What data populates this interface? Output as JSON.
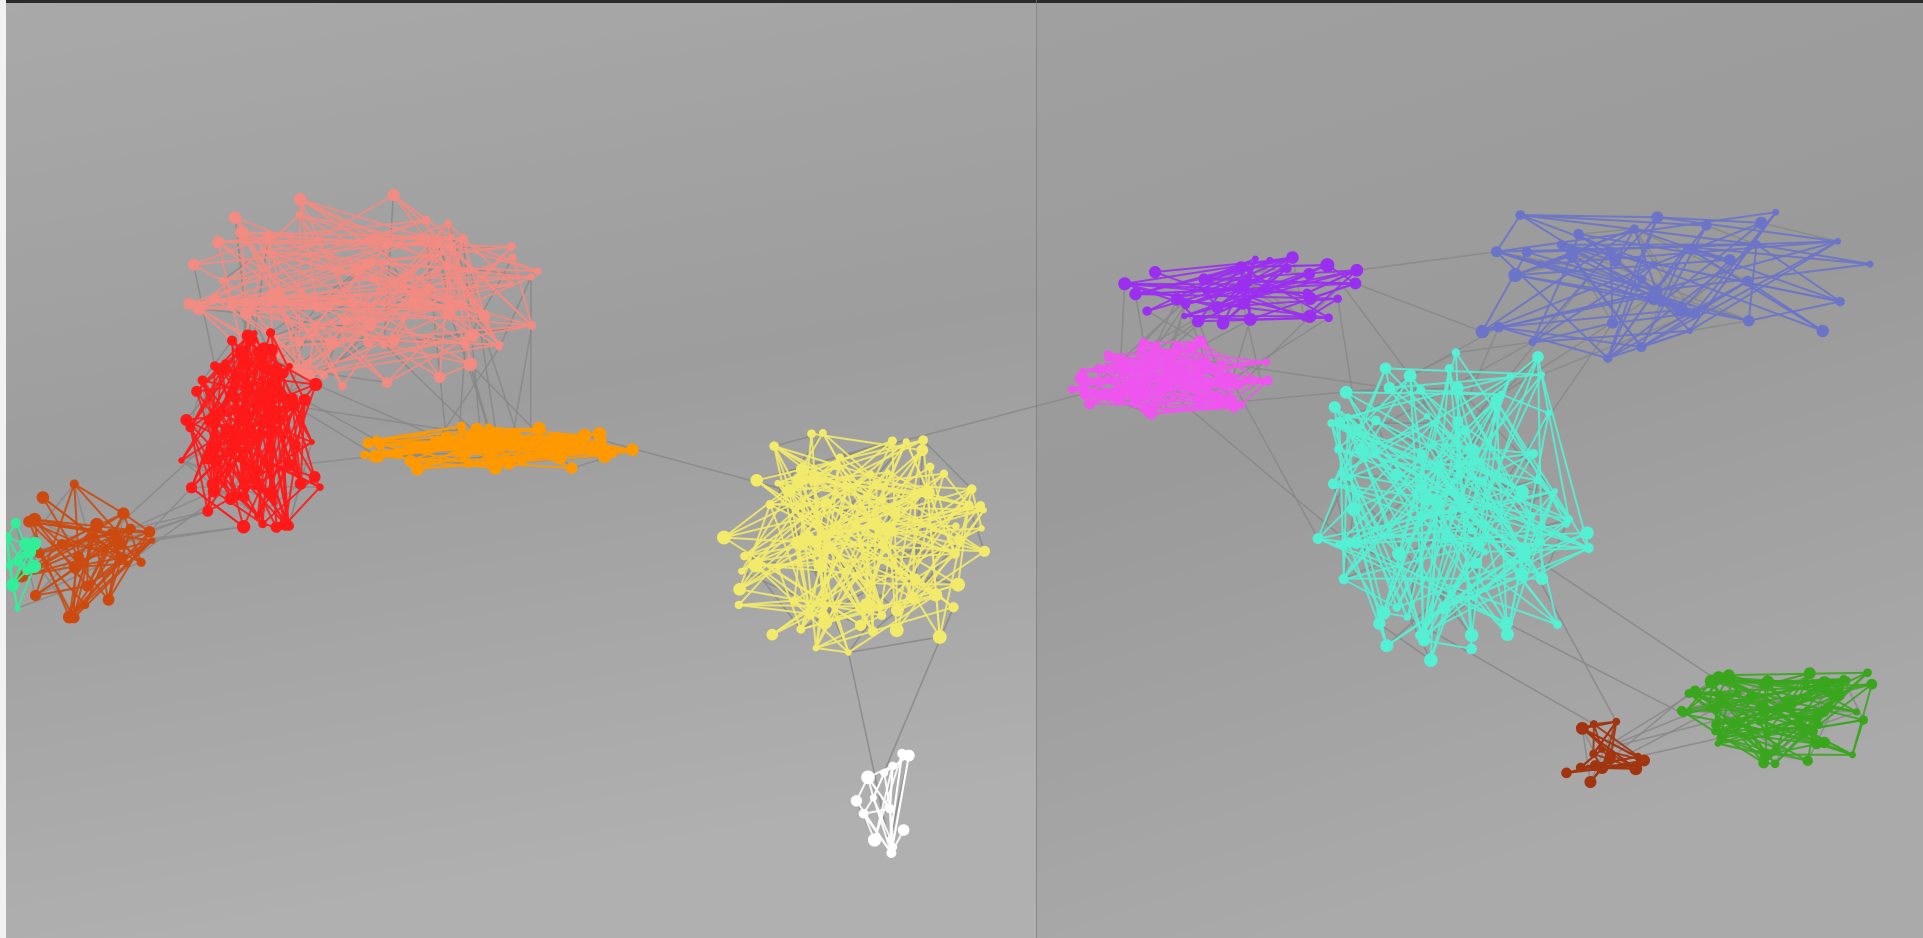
{
  "view": {
    "background_color": "#a2a2a2",
    "bridge_edge_color": "#888888"
  },
  "clusters": [
    {
      "name": "indigo",
      "color": "#6b74c8",
      "node_count": 40
    },
    {
      "name": "salmon",
      "color": "#f28b82",
      "node_count": 70
    },
    {
      "name": "red",
      "color": "#ff1a1a",
      "node_count": 90
    },
    {
      "name": "orange",
      "color": "#ff9900",
      "node_count": 60
    },
    {
      "name": "rust",
      "color": "#cc4a10",
      "node_count": 30
    },
    {
      "name": "mint",
      "color": "#33ee99",
      "node_count": 12
    },
    {
      "name": "green",
      "color": "#3aa61e",
      "node_count": 55
    },
    {
      "name": "yellow",
      "color": "#f2ea6a",
      "node_count": 80
    },
    {
      "name": "white",
      "color": "#ffffff",
      "node_count": 14
    },
    {
      "name": "violet",
      "color": "#9b2ff0",
      "node_count": 35
    },
    {
      "name": "magenta",
      "color": "#ee55ee",
      "node_count": 60
    },
    {
      "name": "aqua",
      "color": "#55efd4",
      "node_count": 90
    },
    {
      "name": "brown",
      "color": "#a2340f",
      "node_count": 16
    }
  ]
}
